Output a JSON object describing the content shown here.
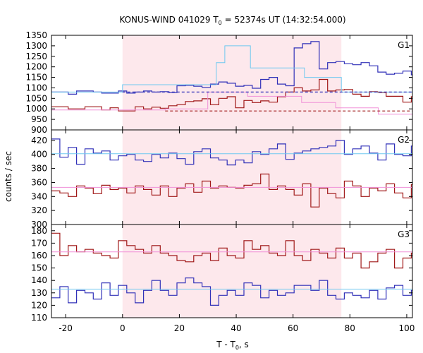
{
  "title": {
    "main": "KONUS-WIND 041029 T",
    "sub": "0",
    "rest": " = 52374s UT (14:32:54.000)"
  },
  "xlabel": {
    "main": "T - T",
    "sub": "0",
    "rest": ", s"
  },
  "ylabel": "counts / sec",
  "colors": {
    "blue": "#3030b8",
    "red": "#a01818",
    "lightblue": "#6ec8f0",
    "pink": "#f090d8",
    "shade": "#fde8ec"
  },
  "chart_data": {
    "type": "line",
    "x_range": [
      -25,
      102
    ],
    "x_ticks": [
      -20,
      0,
      20,
      40,
      60,
      80,
      100
    ],
    "bin_width": 2.944,
    "shaded_interval": [
      0,
      77
    ],
    "panels": [
      {
        "label": "G1",
        "ylim": [
          900,
          1350
        ],
        "y_ticks": [
          900,
          950,
          1000,
          1050,
          1100,
          1150,
          1200,
          1250,
          1300,
          1350
        ],
        "series": [
          {
            "color": "blue",
            "step_start": -25,
            "values": [
              1080,
              1080,
              1070,
              1085,
              1085,
              1080,
              1075,
              1075,
              1085,
              1075,
              1080,
              1085,
              1080,
              1082,
              1078,
              1110,
              1112,
              1108,
              1102,
              1118,
              1128,
              1122,
              1108,
              1112,
              1098,
              1140,
              1150,
              1118,
              1110,
              1290,
              1310,
              1320,
              1190,
              1220,
              1225,
              1215,
              1210,
              1220,
              1205,
              1175,
              1165,
              1170,
              1180,
              1162,
              1148,
              1128,
              1140,
              1120,
              1102,
              1105,
              1082,
              1075,
              1075,
              1080,
              1068,
              1075,
              1052,
              1078,
              1068,
              1095,
              1085,
              1080,
              1082,
              1085,
              1080,
              1080,
              1075,
              1082,
              1080,
              1075,
              1065,
              1085,
              1075
            ]
          },
          {
            "color": "red",
            "step_start": -25,
            "values": [
              1010,
              1010,
              1000,
              1000,
              1010,
              1010,
              995,
              1005,
              990,
              990,
              1010,
              1000,
              1008,
              1003,
              1015,
              1020,
              1035,
              1038,
              1048,
              1020,
              1050,
              1058,
              1005,
              1040,
              1030,
              1038,
              1032,
              1058,
              1080,
              1100,
              1085,
              1090,
              1140,
              1085,
              1090,
              1092,
              1070,
              1060,
              1082,
              1078,
              1060,
              1060,
              1032,
              1058,
              1040,
              1035,
              1048,
              1040,
              1030,
              1020,
              1028,
              1010,
              1005,
              1002,
              1005,
              1010,
              992,
              1000,
              1010,
              1012,
              1005,
              1002,
              985,
              975,
              990,
              992,
              985,
              978,
              968,
              960,
              955,
              962,
              950
            ]
          },
          {
            "color": "lightblue",
            "points": [
              [
                -25,
                1080
              ],
              [
                0,
                1080
              ],
              [
                0,
                1115
              ],
              [
                33,
                1115
              ],
              [
                33,
                1220
              ],
              [
                36,
                1220
              ],
              [
                36,
                1300
              ],
              [
                45,
                1300
              ],
              [
                45,
                1195
              ],
              [
                64,
                1195
              ],
              [
                64,
                1150
              ],
              [
                77,
                1150
              ],
              [
                77,
                1080
              ],
              [
                102,
                1080
              ]
            ]
          },
          {
            "color": "pink",
            "points": [
              [
                -25,
                995
              ],
              [
                15,
                995
              ],
              [
                15,
                1000
              ],
              [
                30,
                1000
              ],
              [
                30,
                1080
              ],
              [
                44,
                1080
              ],
              [
                44,
                1060
              ],
              [
                63,
                1060
              ],
              [
                63,
                1030
              ],
              [
                75,
                1030
              ],
              [
                75,
                1005
              ],
              [
                90,
                1005
              ],
              [
                90,
                975
              ],
              [
                102,
                975
              ]
            ]
          }
        ],
        "background_levels": [
          {
            "color": "blue",
            "value": 1080,
            "x_range": [
              0,
              102
            ]
          },
          {
            "color": "red",
            "value": 990,
            "x_range": [
              15,
              102
            ]
          }
        ]
      },
      {
        "label": "G2",
        "ylim": [
          300,
          435
        ],
        "y_ticks": [
          300,
          320,
          340,
          360,
          380,
          400,
          420
        ],
        "series": [
          {
            "color": "blue",
            "step_start": -25,
            "values": [
              422,
              396,
              410,
              386,
              408,
              402,
              405,
              392,
              398,
              400,
              392,
              390,
              400,
              395,
              402,
              394,
              386,
              404,
              408,
              395,
              392,
              385,
              392,
              388,
              404,
              400,
              408,
              415,
              393,
              402,
              405,
              408,
              410,
              412,
              420,
              400,
              408,
              412,
              402,
              392,
              415,
              400,
              398,
              412,
              405,
              395,
              384,
              402,
              400,
              408,
              420,
              398,
              396,
              392,
              410,
              395,
              386,
              402,
              412,
              395,
              385,
              400,
              416,
              405,
              412,
              405,
              400,
              395,
              390,
              408,
              410,
              395,
              386,
              412,
              406,
              420,
              384
            ]
          },
          {
            "color": "red",
            "step_start": -25,
            "values": [
              348,
              345,
              340,
              355,
              352,
              344,
              356,
              350,
              352,
              345,
              355,
              350,
              342,
              355,
              340,
              352,
              358,
              346,
              362,
              352,
              355,
              353,
              352,
              356,
              358,
              372,
              350,
              355,
              350,
              342,
              358,
              325,
              352,
              344,
              338,
              362,
              355,
              340,
              352,
              348,
              358,
              345,
              338,
              357,
              360,
              364,
              345,
              336,
              355,
              345,
              360,
              348,
              352,
              350,
              352,
              355,
              338,
              355,
              350,
              345,
              355,
              342,
              360,
              345,
              352,
              360,
              366,
              355,
              348,
              352,
              345,
              348
            ]
          },
          {
            "color": "lightblue",
            "points": [
              [
                -25,
                401
              ],
              [
                102,
                401
              ]
            ]
          },
          {
            "color": "pink",
            "points": [
              [
                -25,
                353
              ],
              [
                102,
                353
              ]
            ]
          }
        ]
      },
      {
        "label": "G3",
        "ylim": [
          110,
          185
        ],
        "y_ticks": [
          110,
          120,
          130,
          140,
          150,
          160,
          170,
          180
        ],
        "series": [
          {
            "color": "red",
            "step_start": -25,
            "values": [
              178,
              160,
              168,
              163,
              165,
              162,
              160,
              158,
              172,
              168,
              165,
              162,
              168,
              162,
              160,
              156,
              155,
              160,
              162,
              156,
              166,
              160,
              158,
              172,
              165,
              168,
              162,
              160,
              172,
              160,
              156,
              165,
              162,
              158,
              166,
              158,
              162,
              150,
              155,
              162,
              165,
              150,
              158,
              162,
              160,
              152,
              166,
              172,
              158,
              162,
              150,
              148,
              145,
              152,
              150,
              145,
              158,
              156,
              162,
              168,
              158,
              165,
              162,
              166,
              160,
              165,
              168,
              162,
              158,
              165
            ]
          },
          {
            "color": "blue",
            "step_start": -25,
            "values": [
              126,
              135,
              122,
              132,
              130,
              125,
              138,
              128,
              136,
              130,
              122,
              132,
              140,
              132,
              128,
              138,
              142,
              138,
              135,
              120,
              128,
              132,
              128,
              138,
              136,
              126,
              132,
              128,
              130,
              136,
              136,
              132,
              140,
              128,
              125,
              130,
              128,
              126,
              132,
              125,
              134,
              136,
              128,
              132,
              126,
              130,
              120,
              136,
              128,
              133,
              126,
              130,
              136,
              138,
              145,
              138,
              135,
              140,
              130,
              135,
              128,
              126,
              134,
              128,
              140,
              125,
              138,
              130,
              134,
              128,
              132,
              118,
              135
            ]
          },
          {
            "color": "lightblue",
            "points": [
              [
                -25,
                133
              ],
              [
                102,
                133
              ]
            ]
          },
          {
            "color": "pink",
            "points": [
              [
                -25,
                163
              ],
              [
                102,
                163
              ]
            ]
          }
        ]
      }
    ]
  }
}
